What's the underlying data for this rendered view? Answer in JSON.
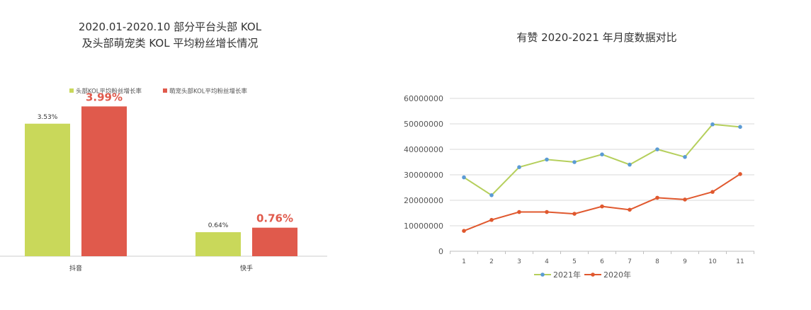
{
  "left": {
    "title_line1": "2020.01-2020.10 部分平台头部 KOL",
    "title_line2": "及头部萌宠类 KOL 平均粉丝增长情况"
  },
  "right": {
    "title": "有赞 2020-2021 年月度数据对比"
  },
  "colors": {
    "green_bar": "#c9d85a",
    "red_bar": "#e05a4c",
    "line_2021": "#b5cf5c",
    "marker_2021": "#5b9bd5",
    "line_2020": "#e0582e",
    "marker_2020": "#e0582e",
    "axis": "#bfbfbf",
    "grid": "#d9d9d9"
  },
  "chart_data": [
    {
      "type": "bar",
      "categories": [
        "抖音",
        "快手"
      ],
      "series": [
        {
          "name": "头部KOL平均粉丝增长率",
          "values": [
            3.53,
            0.64
          ],
          "labels": [
            "3.53%",
            "0.64%"
          ]
        },
        {
          "name": "萌宠头部KOL平均粉丝增长率",
          "values": [
            3.99,
            0.76
          ],
          "labels": [
            "3.99%",
            "0.76%"
          ]
        }
      ],
      "ylim": [
        0,
        4.6
      ],
      "legend": "top"
    },
    {
      "type": "line",
      "x": [
        "1",
        "2",
        "3",
        "4",
        "5",
        "6",
        "7",
        "8",
        "9",
        "10",
        "11"
      ],
      "series": [
        {
          "name": "2021年",
          "values": [
            29000000,
            22000000,
            33000000,
            36000000,
            35000000,
            38000000,
            34000000,
            40000000,
            37000000,
            49800000,
            48800000
          ]
        },
        {
          "name": "2020年",
          "values": [
            8000000,
            12300000,
            15400000,
            15400000,
            14700000,
            17600000,
            16300000,
            21000000,
            20300000,
            23300000,
            30300000
          ]
        }
      ],
      "yticks": [
        "0",
        "10000000",
        "20000000",
        "30000000",
        "40000000",
        "50000000",
        "60000000"
      ],
      "ylim": [
        0,
        60000000
      ],
      "grid": true,
      "legend": "bottom"
    }
  ]
}
